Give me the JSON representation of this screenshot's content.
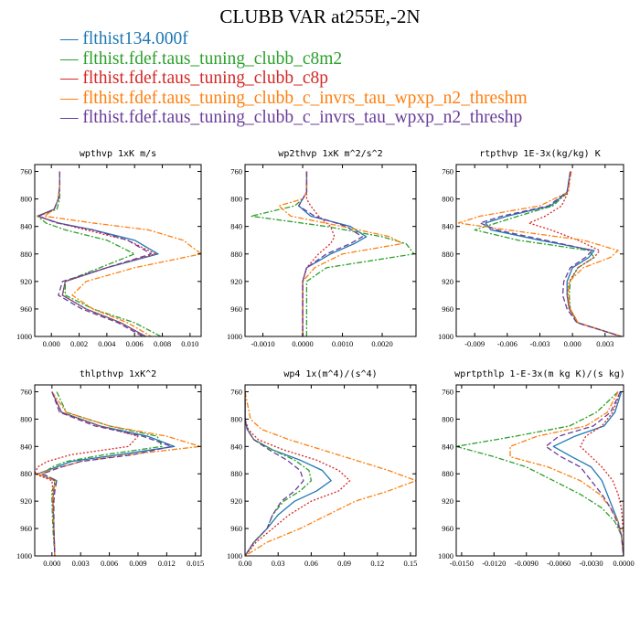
{
  "title": "CLUBB VAR at255E,-2N",
  "series": [
    {
      "name": "flthist134.000f",
      "color": "#1f77b4",
      "dash": ""
    },
    {
      "name": "flthist.fdef.taus_tuning_clubb_c8m2",
      "color": "#2ca02c",
      "dash": "6,2,2,2"
    },
    {
      "name": "flthist.fdef.taus_tuning_clubb_c8p",
      "color": "#d62728",
      "dash": "2,2"
    },
    {
      "name": "flthist.fdef.taus_tuning_clubb_c_invrs_tau_wpxp_n2_threshm",
      "color": "#ff7f0e",
      "dash": "6,2,2,2"
    },
    {
      "name": "flthist.fdef.taus_tuning_clubb_c_invrs_tau_wpxp_n2_threshp",
      "color": "#6a3d9a",
      "dash": "6,3"
    }
  ],
  "chart_data": [
    {
      "type": "line",
      "title": "wpthvp  1xK m/s",
      "ylim": [
        1000,
        750
      ],
      "yticks": [
        760,
        800,
        840,
        880,
        920,
        960,
        1000
      ],
      "ytick_labels": [
        "760",
        "800",
        "840",
        "880",
        "920",
        "960",
        "1000"
      ],
      "xlim": [
        -0.0012,
        0.0108
      ],
      "xticks": [
        0.0,
        0.002,
        0.004,
        0.006,
        0.008,
        0.01
      ],
      "xtick_labels": [
        "0.000",
        "0.002",
        "0.004",
        "0.006",
        "0.008",
        "0.010"
      ],
      "y": [
        760,
        780,
        800,
        815,
        825,
        835,
        845,
        860,
        880,
        900,
        920,
        940,
        960,
        980,
        1000
      ],
      "series_values": [
        [
          0.0006,
          0.0006,
          0.0005,
          0.0002,
          -0.001,
          0.0005,
          0.003,
          0.006,
          0.0077,
          0.004,
          0.001,
          0.0008,
          0.0025,
          0.005,
          0.0068
        ],
        [
          0.0006,
          0.0006,
          0.0006,
          0.0004,
          -0.001,
          -0.0004,
          0.001,
          0.004,
          0.006,
          0.0035,
          0.001,
          0.001,
          0.003,
          0.006,
          0.0079
        ],
        [
          0.0006,
          0.0006,
          0.0005,
          0.0002,
          -0.001,
          0.0005,
          0.0025,
          0.0055,
          0.0075,
          0.004,
          0.001,
          0.0008,
          0.0025,
          0.005,
          0.0068
        ],
        [
          0.0006,
          0.0006,
          0.0005,
          0.0002,
          -0.0005,
          0.003,
          0.007,
          0.0095,
          0.0108,
          0.006,
          0.0025,
          0.0015,
          0.003,
          0.0055,
          0.0072
        ],
        [
          0.0006,
          0.0006,
          0.0005,
          0.0002,
          -0.0009,
          0.0004,
          0.003,
          0.0055,
          0.0072,
          0.004,
          0.0008,
          0.0005,
          0.0022,
          0.0048,
          0.0066
        ]
      ]
    },
    {
      "type": "line",
      "title": "wp2thvp  1xK m^2/s^2",
      "ylim": [
        1000,
        750
      ],
      "yticks": [
        760,
        800,
        840,
        880,
        920,
        960,
        1000
      ],
      "ytick_labels": [
        "760",
        "800",
        "840",
        "880",
        "920",
        "960",
        "1000"
      ],
      "xlim": [
        -0.00145,
        0.00285
      ],
      "xticks": [
        -0.001,
        0.0,
        0.001,
        0.002
      ],
      "xtick_labels": [
        "-0.0010",
        "0.0000",
        "0.0010",
        "0.0020"
      ],
      "y": [
        760,
        790,
        800,
        810,
        825,
        840,
        855,
        865,
        880,
        900,
        920,
        960,
        1000
      ],
      "series_values": [
        [
          0.0001,
          0.0001,
          0.0,
          -0.0001,
          0.0002,
          0.0012,
          0.0016,
          0.0013,
          0.0007,
          0.0001,
          0.0,
          0.0,
          0.0
        ],
        [
          0.0001,
          0.0001,
          0.0,
          -0.0002,
          -0.0013,
          0.0006,
          0.002,
          0.0026,
          0.0028,
          0.0006,
          0.0001,
          0.0001,
          0.0001
        ],
        [
          0.0001,
          0.0001,
          0.0001,
          0.0002,
          0.0004,
          0.0007,
          0.0008,
          0.0007,
          0.0004,
          0.0001,
          0.0,
          0.0,
          0.0
        ],
        [
          0.0001,
          0.0001,
          0.0,
          -0.0006,
          -0.0003,
          0.001,
          0.0022,
          0.0025,
          0.001,
          0.0003,
          0.0,
          0.0,
          0.0
        ],
        [
          0.0001,
          0.0001,
          0.0,
          -0.0001,
          0.0003,
          0.0011,
          0.0015,
          0.0012,
          0.0006,
          0.0001,
          0.0,
          0.0,
          0.0
        ]
      ]
    },
    {
      "type": "line",
      "title": "rtpthvp  1E-3x(kg/kg) K",
      "ylim": [
        1000,
        750
      ],
      "yticks": [
        760,
        800,
        840,
        880,
        920,
        960,
        1000
      ],
      "ytick_labels": [
        "760",
        "800",
        "840",
        "880",
        "920",
        "960",
        "1000"
      ],
      "xlim": [
        -0.0107,
        0.0047
      ],
      "xticks": [
        -0.009,
        -0.006,
        -0.003,
        0.0,
        0.003
      ],
      "xtick_labels": [
        "-0.009",
        "-0.006",
        "-0.003",
        "0.000",
        "0.003"
      ],
      "y": [
        760,
        790,
        810,
        825,
        835,
        845,
        860,
        875,
        885,
        900,
        920,
        940,
        960,
        980,
        1000
      ],
      "series_values": [
        [
          -0.0002,
          -0.0005,
          -0.002,
          -0.006,
          -0.008,
          -0.0075,
          -0.003,
          0.002,
          0.0015,
          0.0,
          -0.0005,
          -0.0005,
          -0.0003,
          0.0005,
          0.0045
        ],
        [
          -0.0002,
          -0.0004,
          -0.0018,
          -0.005,
          -0.007,
          -0.009,
          -0.005,
          0.0015,
          0.002,
          0.0005,
          -0.0002,
          -0.0003,
          -0.0002,
          0.0005,
          0.0045
        ],
        [
          -0.0002,
          -0.0004,
          -0.001,
          -0.0025,
          -0.004,
          -0.002,
          0.0005,
          0.0025,
          0.002,
          0.0005,
          -0.0003,
          -0.0005,
          -0.0003,
          0.0005,
          0.0045
        ],
        [
          -0.0001,
          -0.0004,
          -0.003,
          -0.0085,
          -0.0105,
          -0.006,
          0.001,
          0.0042,
          0.0035,
          0.001,
          -0.0003,
          -0.0004,
          -0.0002,
          0.0005,
          0.0045
        ],
        [
          -0.0002,
          -0.0005,
          -0.0022,
          -0.0065,
          -0.0085,
          -0.007,
          -0.0025,
          0.0018,
          0.0012,
          -0.0002,
          -0.0008,
          -0.0009,
          -0.0005,
          0.0004,
          0.0045
        ]
      ]
    },
    {
      "type": "line",
      "title": "thlpthvp  1xK^2",
      "ylim": [
        1000,
        750
      ],
      "yticks": [
        760,
        800,
        840,
        880,
        920,
        960,
        1000
      ],
      "ytick_labels": [
        "760",
        "800",
        "840",
        "880",
        "920",
        "960",
        "1000"
      ],
      "xlim": [
        -0.0018,
        0.0156
      ],
      "xticks": [
        0.0,
        0.003,
        0.006,
        0.009,
        0.012,
        0.015
      ],
      "xtick_labels": [
        "0.000",
        "0.003",
        "0.006",
        "0.009",
        "0.012",
        "0.015"
      ],
      "y": [
        760,
        790,
        810,
        825,
        840,
        852,
        862,
        870,
        880,
        890,
        905,
        920,
        960,
        1000
      ],
      "series_values": [
        [
          0.0,
          0.001,
          0.005,
          0.01,
          0.0128,
          0.007,
          0.002,
          0.0005,
          -0.0015,
          0.0003,
          0.0002,
          0.0001,
          0.0002,
          0.0003
        ],
        [
          0.0005,
          0.0015,
          0.006,
          0.011,
          0.0115,
          0.0055,
          0.0015,
          0.0,
          -0.001,
          0.0005,
          0.0,
          0.0,
          0.0001,
          0.0003
        ],
        [
          0.0,
          0.001,
          0.005,
          0.009,
          0.008,
          0.002,
          -0.0005,
          -0.0015,
          -0.0018,
          0.0,
          0.0001,
          0.0001,
          0.0002,
          0.0003
        ],
        [
          0.0,
          0.0015,
          0.006,
          0.012,
          0.0155,
          0.008,
          0.003,
          0.001,
          -0.0015,
          0.0003,
          0.0002,
          0.0001,
          0.0002,
          0.0003
        ],
        [
          0.0,
          0.0008,
          0.0045,
          0.0095,
          0.0125,
          0.0085,
          0.003,
          0.001,
          -0.001,
          0.0005,
          0.0003,
          0.0002,
          0.0002,
          0.0003
        ]
      ]
    },
    {
      "type": "line",
      "title": "wp4  1x(m^4)/(s^4)",
      "ylim": [
        1000,
        750
      ],
      "yticks": [
        760,
        800,
        840,
        880,
        920,
        960,
        1000
      ],
      "ytick_labels": [
        "760",
        "800",
        "840",
        "880",
        "920",
        "960",
        "1000"
      ],
      "xlim": [
        0.0,
        0.155
      ],
      "xticks": [
        0.0,
        0.03,
        0.06,
        0.09,
        0.12,
        0.15
      ],
      "xtick_labels": [
        "0.00",
        "0.03",
        "0.06",
        "0.09",
        "0.12",
        "0.15"
      ],
      "y": [
        760,
        800,
        815,
        830,
        845,
        860,
        875,
        890,
        905,
        920,
        940,
        960,
        980,
        1000
      ],
      "series_values": [
        [
          0.0,
          0.0,
          0.002,
          0.008,
          0.025,
          0.05,
          0.07,
          0.078,
          0.065,
          0.045,
          0.03,
          0.02,
          0.008,
          0.0
        ],
        [
          0.0,
          0.0,
          0.002,
          0.008,
          0.025,
          0.045,
          0.058,
          0.06,
          0.05,
          0.035,
          0.025,
          0.02,
          0.008,
          0.0
        ],
        [
          0.0,
          0.0,
          0.003,
          0.012,
          0.035,
          0.065,
          0.085,
          0.095,
          0.085,
          0.06,
          0.04,
          0.025,
          0.01,
          0.0
        ],
        [
          0.0,
          0.005,
          0.015,
          0.04,
          0.07,
          0.1,
          0.13,
          0.155,
          0.13,
          0.1,
          0.075,
          0.05,
          0.02,
          0.0
        ],
        [
          0.0,
          0.0,
          0.002,
          0.008,
          0.022,
          0.038,
          0.05,
          0.053,
          0.045,
          0.033,
          0.025,
          0.02,
          0.008,
          0.0
        ]
      ]
    },
    {
      "type": "line",
      "title": "wprtpthlp  1-E-3x(m kg K)/(s kg)",
      "ylim": [
        1000,
        750
      ],
      "yticks": [
        760,
        800,
        840,
        880,
        920,
        960,
        1000
      ],
      "ytick_labels": [
        "760",
        "800",
        "840",
        "880",
        "920",
        "960",
        "1000"
      ],
      "xlim": [
        -0.0155,
        0.0
      ],
      "xticks": [
        -0.015,
        -0.012,
        -0.009,
        -0.006,
        -0.003,
        0.0
      ],
      "xtick_labels": [
        "-0.0150",
        "-0.0120",
        "-0.0090",
        "-0.0060",
        "-0.0030",
        "0.0000"
      ],
      "y": [
        760,
        790,
        810,
        825,
        840,
        855,
        870,
        890,
        910,
        930,
        950,
        970,
        1000
      ],
      "series_values": [
        [
          -0.0002,
          -0.0008,
          -0.0018,
          -0.0045,
          -0.0065,
          -0.0048,
          -0.003,
          -0.002,
          -0.0015,
          -0.001,
          -0.0005,
          -0.0002,
          0.0
        ],
        [
          -0.0005,
          -0.0025,
          -0.005,
          -0.01,
          -0.0155,
          -0.012,
          -0.009,
          -0.0065,
          -0.004,
          -0.002,
          -0.0008,
          -0.0002,
          0.0
        ],
        [
          -0.0003,
          -0.001,
          -0.002,
          -0.0035,
          -0.004,
          -0.003,
          -0.002,
          -0.001,
          -0.0005,
          -0.0002,
          -0.0001,
          0.0,
          0.0
        ],
        [
          -0.0005,
          -0.0015,
          -0.0035,
          -0.008,
          -0.0105,
          -0.0105,
          -0.007,
          -0.004,
          -0.0022,
          -0.0012,
          -0.0005,
          -0.0002,
          0.0
        ],
        [
          -0.0003,
          -0.0012,
          -0.0028,
          -0.006,
          -0.0072,
          -0.0058,
          -0.004,
          -0.003,
          -0.002,
          -0.0012,
          -0.0006,
          -0.0002,
          0.0
        ]
      ]
    }
  ]
}
